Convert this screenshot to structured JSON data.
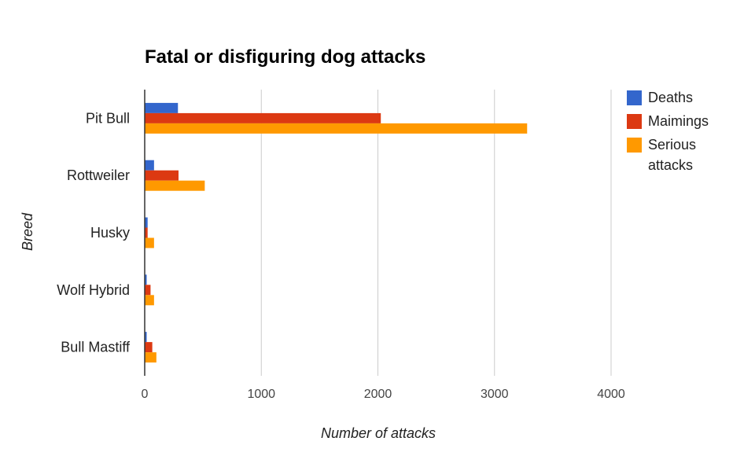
{
  "chart_data": {
    "type": "bar",
    "orientation": "horizontal",
    "title": "Fatal or disfiguring dog attacks",
    "xlabel": "Number of attacks",
    "ylabel": "Breed",
    "categories": [
      "Pit Bull",
      "Rottweiler",
      "Husky",
      "Wolf Hybrid",
      "Bull Mastiff"
    ],
    "series": [
      {
        "name": "Deaths",
        "color": "#3366cc",
        "values": [
          285,
          80,
          25,
          17,
          17
        ]
      },
      {
        "name": "Maimings",
        "color": "#dc3912",
        "values": [
          2025,
          290,
          25,
          50,
          65
        ]
      },
      {
        "name": "Serious attacks",
        "color": "#ff9900",
        "values": [
          3280,
          515,
          80,
          80,
          100
        ]
      }
    ],
    "xlim": [
      0,
      4000
    ],
    "xticks": [
      0,
      1000,
      2000,
      3000,
      4000
    ],
    "xtick_labels": [
      "0",
      "1000",
      "2000",
      "3000",
      "4000"
    ],
    "grid": true,
    "legend": "right",
    "legend_labels": [
      "Deaths",
      "Maimings",
      "Serious\nattacks"
    ]
  }
}
